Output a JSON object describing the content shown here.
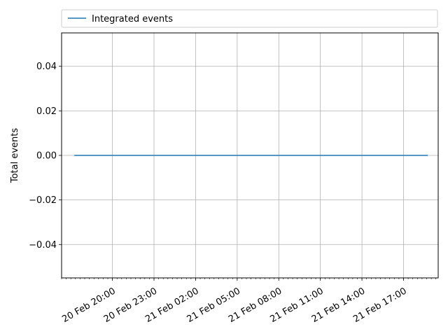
{
  "chart_data": {
    "type": "line",
    "title": "",
    "xlabel": "",
    "ylabel": "Total events",
    "legend_position": "top",
    "grid": true,
    "ylim": [
      -0.055,
      0.055
    ],
    "y_ticks": [
      -0.04,
      -0.02,
      0.0,
      0.02,
      0.04
    ],
    "y_tick_labels": [
      "−0.04",
      "−0.02",
      "0.00",
      "0.02",
      "0.04"
    ],
    "xlim": [
      "2024-02-20T16:20",
      "2024-02-21T19:30"
    ],
    "x_ticks": [
      "2024-02-20T20:00",
      "2024-02-20T23:00",
      "2024-02-21T02:00",
      "2024-02-21T05:00",
      "2024-02-21T08:00",
      "2024-02-21T11:00",
      "2024-02-21T14:00",
      "2024-02-21T17:00"
    ],
    "x_tick_labels": [
      "20 Feb 20:00",
      "20 Feb 23:00",
      "21 Feb 02:00",
      "21 Feb 05:00",
      "21 Feb 08:00",
      "21 Feb 11:00",
      "21 Feb 14:00",
      "21 Feb 17:00"
    ],
    "series": [
      {
        "name": "Integrated events",
        "color": "#1f77b4",
        "x": [
          "2024-02-20T17:15",
          "2024-02-21T18:45"
        ],
        "y": [
          0,
          0
        ]
      }
    ]
  }
}
